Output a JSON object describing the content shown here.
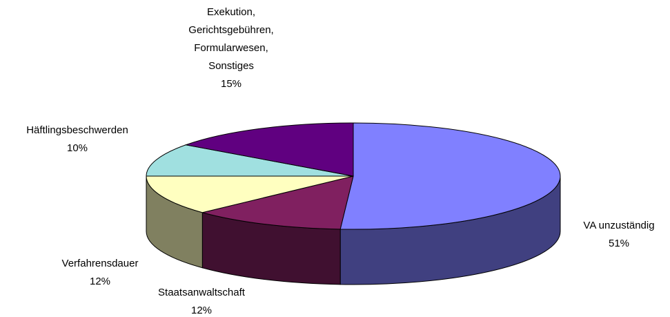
{
  "chart_data": {
    "type": "pie",
    "style": "3d",
    "categories": [
      "VA unzuständig",
      "Staatsanwaltschaft",
      "Verfahrensdauer",
      "Häftlingsbeschwerden",
      "Exekution, Gerichtsgebühren, Formularwesen, Sonstiges"
    ],
    "values": [
      51,
      12,
      12,
      10,
      15
    ],
    "value_labels": [
      "51%",
      "12%",
      "12%",
      "10%",
      "15%"
    ],
    "colors": [
      "#8080ff",
      "#802060",
      "#ffffc0",
      "#a0e0e0",
      "#600080"
    ]
  }
}
